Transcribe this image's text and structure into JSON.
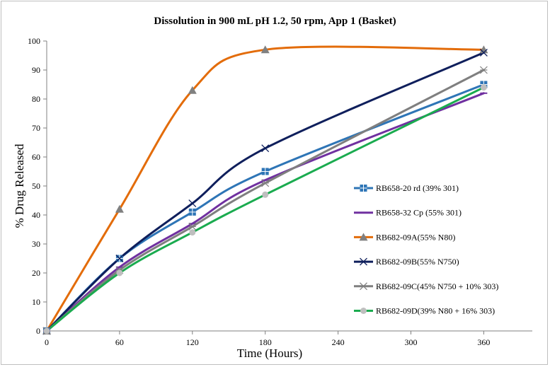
{
  "chart_data": {
    "type": "line",
    "title": "Dissolution in 900 mL pH 1.2, 50 rpm, App 1 (Basket)",
    "xlabel": "Time (Hours)",
    "ylabel": "% Drug Released",
    "xlim": [
      0,
      400
    ],
    "ylim": [
      0,
      100
    ],
    "x_ticks": [
      0,
      60,
      120,
      180,
      240,
      300,
      360
    ],
    "y_ticks": [
      0,
      10,
      20,
      30,
      40,
      50,
      60,
      70,
      80,
      90,
      100
    ],
    "x": [
      0,
      60,
      120,
      180,
      360
    ],
    "grid": false,
    "legend_position": "right-inside",
    "series": [
      {
        "name": "RB658-20 rd (39% 301)",
        "values": [
          0,
          25,
          41,
          55,
          85
        ],
        "color": "#2e75b6",
        "marker": "square-plus"
      },
      {
        "name": "RB658-32 Cp (55% 301)",
        "values": [
          0,
          22,
          37,
          52,
          82
        ],
        "color": "#7030a0",
        "marker": "dash"
      },
      {
        "name": "RB682-09A(55% N80)",
        "values": [
          0,
          42,
          83,
          97,
          97
        ],
        "color": "#e36c0a",
        "marker": "triangle"
      },
      {
        "name": "RB682-09B(55% N750)",
        "values": [
          0,
          25,
          44,
          63,
          96
        ],
        "color": "#0f1f5c",
        "marker": "x"
      },
      {
        "name": "RB682-09C(45% N750 + 10% 303)",
        "values": [
          0,
          21,
          36,
          51,
          90
        ],
        "color": "#7f7f7f",
        "marker": "star"
      },
      {
        "name": "RB682-09D(39% N80 + 16% 303)",
        "values": [
          0,
          20,
          34,
          47,
          84
        ],
        "color": "#1aab4f",
        "marker": "circle"
      }
    ]
  }
}
